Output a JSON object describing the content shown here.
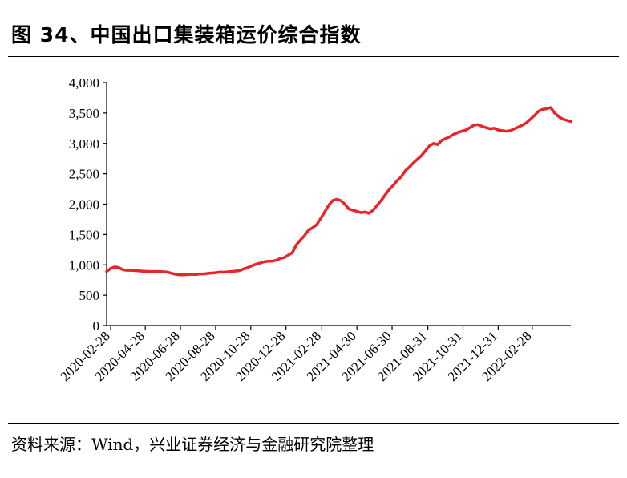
{
  "figure": {
    "title": "图 34、中国出口集装箱运价综合指数",
    "source": "资料来源：Wind，兴业证券经济与金融研究院整理"
  },
  "chart_data": {
    "type": "line",
    "title": "图 34、中国出口集装箱运价综合指数",
    "xlabel": "",
    "ylabel": "",
    "ylim": [
      0,
      4000
    ],
    "yticks": [
      0,
      500,
      1000,
      1500,
      2000,
      2500,
      3000,
      3500,
      4000
    ],
    "ytick_labels": [
      "0",
      "500",
      "1,000",
      "1,500",
      "2,000",
      "2,500",
      "3,000",
      "3,500",
      "4,000"
    ],
    "xlim": [
      "2020-02-21",
      "2022-05-06"
    ],
    "xticks": [
      "2020-02-28",
      "2020-04-28",
      "2020-06-28",
      "2020-08-28",
      "2020-10-28",
      "2020-12-28",
      "2021-02-28",
      "2021-04-30",
      "2021-06-30",
      "2021-08-31",
      "2021-10-31",
      "2021-12-31",
      "2022-02-28"
    ],
    "grid": false,
    "legend": "none",
    "color": "#e8252b",
    "series": [
      {
        "x": [
          "2020-02-21",
          "2020-02-28",
          "2020-03-06",
          "2020-03-13",
          "2020-03-20",
          "2020-03-27",
          "2020-04-03",
          "2020-04-10",
          "2020-04-24",
          "2020-05-08",
          "2020-05-22",
          "2020-06-05",
          "2020-06-12",
          "2020-06-19",
          "2020-06-26",
          "2020-07-03",
          "2020-07-10",
          "2020-07-17",
          "2020-07-24",
          "2020-07-31",
          "2020-08-07",
          "2020-08-14",
          "2020-08-21",
          "2020-08-28",
          "2020-09-04",
          "2020-09-11",
          "2020-09-18",
          "2020-09-25",
          "2020-10-09",
          "2020-10-16",
          "2020-10-23",
          "2020-10-30",
          "2020-11-06",
          "2020-11-13",
          "2020-11-20",
          "2020-11-27",
          "2020-12-04",
          "2020-12-11",
          "2020-12-18",
          "2020-12-25",
          "2021-01-01",
          "2021-01-08",
          "2021-01-15",
          "2021-01-22",
          "2021-01-29",
          "2021-02-05",
          "2021-02-12",
          "2021-02-19",
          "2021-02-26",
          "2021-03-05",
          "2021-03-12",
          "2021-03-19",
          "2021-03-26",
          "2021-04-02",
          "2021-04-09",
          "2021-04-16",
          "2021-04-23",
          "2021-04-30",
          "2021-05-07",
          "2021-05-14",
          "2021-05-21",
          "2021-05-28",
          "2021-06-04",
          "2021-06-11",
          "2021-06-18",
          "2021-06-25",
          "2021-07-02",
          "2021-07-09",
          "2021-07-16",
          "2021-07-23",
          "2021-07-30",
          "2021-08-06",
          "2021-08-13",
          "2021-08-20",
          "2021-08-27",
          "2021-09-03",
          "2021-09-10",
          "2021-09-17",
          "2021-09-24",
          "2021-10-01",
          "2021-10-08",
          "2021-10-15",
          "2021-10-22",
          "2021-10-29",
          "2021-11-05",
          "2021-11-12",
          "2021-11-19",
          "2021-11-26",
          "2021-12-03",
          "2021-12-10",
          "2021-12-17",
          "2021-12-24",
          "2021-12-31",
          "2022-01-07",
          "2022-01-14",
          "2022-01-21",
          "2022-01-28",
          "2022-02-04",
          "2022-02-11",
          "2022-02-18",
          "2022-02-25",
          "2022-03-04",
          "2022-03-11",
          "2022-03-18",
          "2022-03-25",
          "2022-04-01",
          "2022-04-08",
          "2022-04-15",
          "2022-04-22",
          "2022-04-29",
          "2022-05-06"
        ],
        "values": [
          890,
          940,
          965,
          955,
          920,
          910,
          910,
          905,
          895,
          890,
          890,
          880,
          862,
          845,
          835,
          835,
          840,
          845,
          840,
          850,
          850,
          858,
          865,
          870,
          880,
          878,
          885,
          890,
          905,
          935,
          955,
          985,
          1010,
          1030,
          1050,
          1060,
          1060,
          1075,
          1105,
          1120,
          1160,
          1200,
          1330,
          1410,
          1480,
          1570,
          1610,
          1660,
          1760,
          1870,
          1980,
          2060,
          2080,
          2060,
          2000,
          1920,
          1900,
          1880,
          1860,
          1870,
          1850,
          1900,
          1980,
          2060,
          2150,
          2240,
          2310,
          2390,
          2450,
          2550,
          2610,
          2680,
          2740,
          2800,
          2880,
          2960,
          3000,
          2980,
          3050,
          3080,
          3110,
          3150,
          3180,
          3200,
          3220,
          3260,
          3300,
          3310,
          3280,
          3260,
          3240,
          3250,
          3220,
          3210,
          3200,
          3210,
          3240,
          3270,
          3300,
          3340,
          3400,
          3460,
          3530,
          3560,
          3570,
          3590,
          3500,
          3440,
          3400,
          3380,
          3360
        ]
      }
    ]
  }
}
